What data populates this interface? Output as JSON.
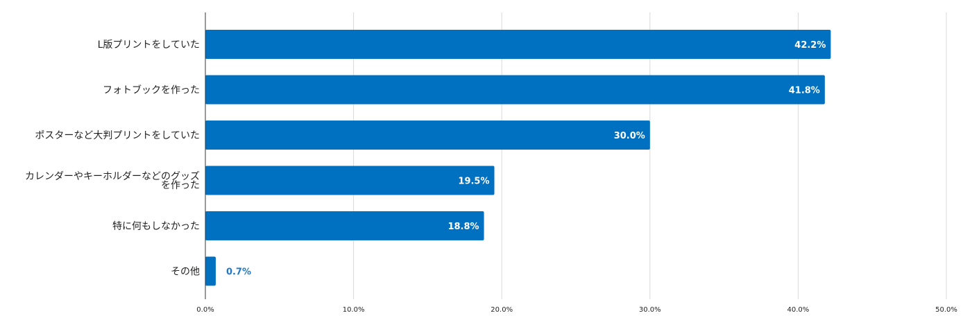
{
  "chart_data": {
    "type": "bar",
    "orientation": "horizontal",
    "categories": [
      "L版プリントをしていた",
      "フォトブックを作った",
      "ポスターなど大判プリントをしていた",
      "カレンダーやキーホルダーなどのグッズを作った",
      "特に何もしなかった",
      "その他"
    ],
    "category_lines": [
      [
        "L版プリントをしていた"
      ],
      [
        "フォトブックを作った"
      ],
      [
        "ポスターなど大判プリントをしていた"
      ],
      [
        "カレンダーやキーホルダーなどのグッズ",
        "を作った"
      ],
      [
        "特に何もしなかった"
      ],
      [
        "その他"
      ]
    ],
    "values": [
      42.2,
      41.8,
      30.0,
      19.5,
      18.8,
      0.7
    ],
    "data_labels": [
      "42.2%",
      "41.8%",
      "30.0%",
      "19.5%",
      "18.8%",
      "0.7%"
    ],
    "xlim": [
      0,
      50
    ],
    "xticks": [
      0,
      10,
      20,
      30,
      40,
      50
    ],
    "xtick_labels": [
      "0.0%",
      "10.0%",
      "20.0%",
      "30.0%",
      "40.0%",
      "50.0%"
    ],
    "grid": true,
    "legend": "none",
    "title": "",
    "xlabel": "",
    "ylabel": ""
  },
  "colors": {
    "bar": "#0070c0",
    "label_inside": "#ffffff",
    "label_outside": "#1f78c8",
    "grid": "#d9d9d9",
    "axis": "#333333",
    "text": "#222222"
  }
}
